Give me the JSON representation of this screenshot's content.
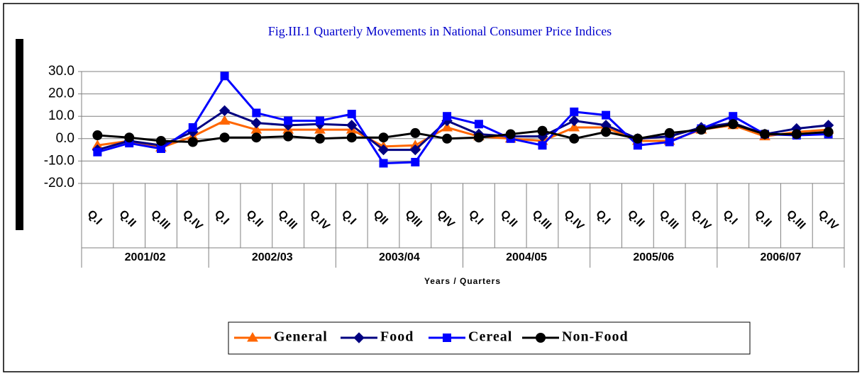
{
  "chart_data": {
    "type": "line",
    "title": "Fig.III.1 Quarterly Movements in National Consumer Price Indices",
    "x_label": "Years / Quarters",
    "categories": [
      "Q.I",
      "Q.II",
      "Q.III",
      "Q.IV",
      "Q.I",
      "Q.II",
      "Q.III",
      "Q.IV",
      "Q.I",
      "QII",
      "QIII",
      "QIV",
      "Q.I",
      "Q.II",
      "Q.III",
      "Q.IV",
      "Q.I",
      "Q.II",
      "Q.III",
      "Q.IV",
      "Q.I",
      "Q.II",
      "Q.III",
      "Q.IV"
    ],
    "category_groups": [
      "2001/02",
      "2002/03",
      "2003/04",
      "2004/05",
      "2005/06",
      "2006/07"
    ],
    "ylim": [
      -20,
      30
    ],
    "yticks": [
      {
        "value": -20,
        "label": "-20.0"
      },
      {
        "value": -10,
        "label": "-10.0"
      },
      {
        "value": 0,
        "label": "0.0"
      },
      {
        "value": 10,
        "label": "10.0"
      },
      {
        "value": 20,
        "label": "20.0"
      },
      {
        "value": 30,
        "label": "30.0"
      }
    ],
    "grid": true,
    "legend": "bottom",
    "series": [
      {
        "name": "General",
        "color": "#ff6600",
        "marker": "triangle",
        "values": [
          -3,
          -1,
          -4,
          1,
          8,
          4,
          4,
          4,
          4,
          -3.5,
          -3,
          5,
          1,
          0,
          -1,
          5,
          5,
          -1,
          -1,
          4,
          6,
          1,
          3,
          4
        ]
      },
      {
        "name": "Food",
        "color": "#000080",
        "marker": "diamond",
        "values": [
          -5,
          -1,
          -3,
          3,
          12.5,
          7,
          6,
          6.5,
          6,
          -5,
          -5,
          8,
          2,
          1,
          1,
          8,
          6,
          0,
          1,
          5,
          7,
          2,
          4.5,
          6
        ]
      },
      {
        "name": "Cereal",
        "color": "#0000ff",
        "marker": "square",
        "values": [
          -6,
          -2,
          -4.5,
          5,
          28,
          11.5,
          8,
          8,
          11,
          -11,
          -10.5,
          10,
          6.5,
          0,
          -3,
          12,
          10.5,
          -3,
          -1.5,
          4.5,
          10,
          2,
          1.5,
          2
        ]
      },
      {
        "name": "Non-Food",
        "color": "#000000",
        "marker": "circle",
        "values": [
          1.5,
          0.5,
          -1,
          -1.5,
          0.5,
          0.5,
          1,
          0,
          0.5,
          0.5,
          2.5,
          0,
          0.5,
          2,
          3.5,
          0,
          3,
          0,
          2.5,
          4,
          6.5,
          2,
          2,
          3
        ]
      }
    ]
  }
}
